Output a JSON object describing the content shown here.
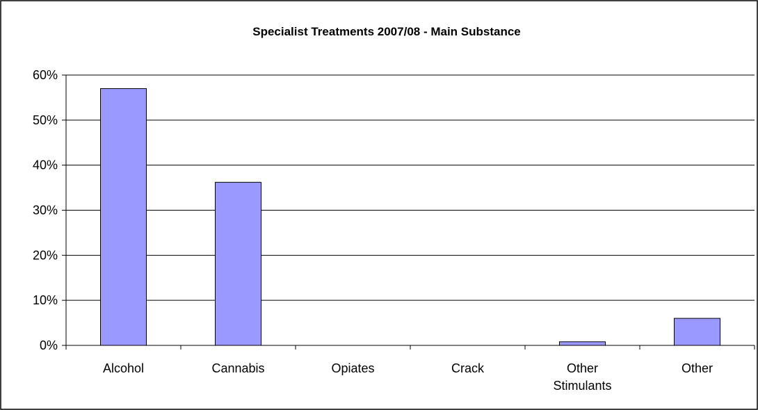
{
  "chart_data": {
    "type": "bar",
    "title": "Specialist Treatments 2007/08 - Main Substance",
    "xlabel": "",
    "ylabel": "",
    "categories": [
      [
        "Alcohol"
      ],
      [
        "Cannabis"
      ],
      [
        "Opiates"
      ],
      [
        "Crack"
      ],
      [
        "Other",
        "Stimulants"
      ],
      [
        "Other"
      ]
    ],
    "values": [
      57,
      36.2,
      0,
      0,
      0.8,
      6
    ],
    "ylim": [
      0,
      60
    ],
    "yticks": [
      0,
      10,
      20,
      30,
      40,
      50,
      60
    ],
    "ytick_labels": [
      "0%",
      "10%",
      "20%",
      "30%",
      "40%",
      "50%",
      "60%"
    ],
    "grid": true,
    "legend": "none",
    "colors": {
      "bar_fill": "#9999ff",
      "bar_stroke": "#000000",
      "grid": "#000000",
      "frame": "#000000",
      "background": "#ffffff"
    }
  }
}
